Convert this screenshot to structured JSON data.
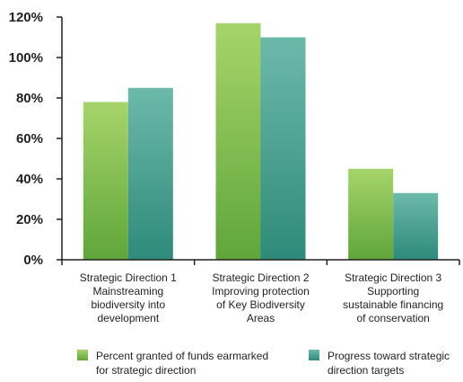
{
  "chart_data": {
    "type": "bar",
    "categories": [
      [
        "Strategic Direction 1",
        "Mainstreaming",
        "biodiversity into",
        "development"
      ],
      [
        "Strategic Direction 2",
        "Improving protection",
        "of Key Biodiversity",
        "Areas"
      ],
      [
        "Strategic Direction 3",
        "Supporting",
        "sustainable financing",
        "of conservation"
      ]
    ],
    "series": [
      {
        "name": [
          "Percent granted of funds earmarked",
          "for strategic direction"
        ],
        "values": [
          78,
          117,
          45
        ],
        "color_top": "#a6d46a",
        "color_bottom": "#5fa63a"
      },
      {
        "name": [
          "Progress toward strategic",
          "direction targets"
        ],
        "values": [
          85,
          110,
          33
        ],
        "color_top": "#6cb9aa",
        "color_bottom": "#2e8a7a"
      }
    ],
    "yticks": [
      "0%",
      "20%",
      "40%",
      "60%",
      "80%",
      "100%",
      "120%"
    ],
    "ylim": [
      0,
      120
    ],
    "grid": false,
    "legend_position": "bottom",
    "axis_color": "#231f20"
  }
}
